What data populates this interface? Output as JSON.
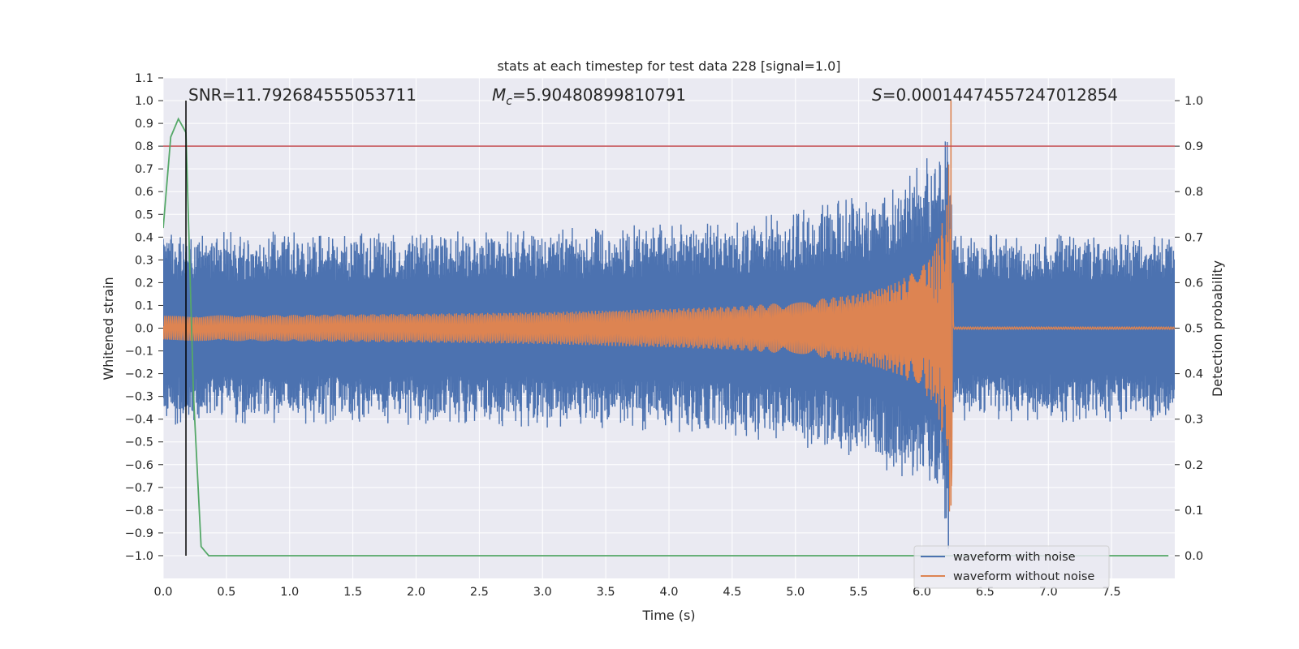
{
  "chart_data": {
    "type": "line",
    "title": "stats at each timestep for test data 228 [signal=1.0]",
    "xlabel": "Time (s)",
    "ylabel": "Whitened strain",
    "ylabel_right": "Detection probability",
    "xlim": [
      0.0,
      8.0
    ],
    "ylim": [
      -1.1,
      1.1
    ],
    "ylim_right": [
      -0.05,
      1.05
    ],
    "x_ticks": [
      "0.0",
      "0.5",
      "1.0",
      "1.5",
      "2.0",
      "2.5",
      "3.0",
      "3.5",
      "4.0",
      "4.5",
      "5.0",
      "5.5",
      "6.0",
      "6.5",
      "7.0",
      "7.5"
    ],
    "y_ticks": [
      "1.1",
      "1.0",
      "0.9",
      "0.8",
      "0.7",
      "0.6",
      "0.5",
      "0.4",
      "0.3",
      "0.2",
      "0.1",
      "0.0",
      "−0.1",
      "−0.2",
      "−0.3",
      "−0.4",
      "−0.5",
      "−0.6",
      "−0.7",
      "−0.8",
      "−0.9",
      "−1.0"
    ],
    "y_right_ticks": [
      "1.0",
      "0.9",
      "0.8",
      "0.7",
      "0.6",
      "0.5",
      "0.4",
      "0.3",
      "0.2",
      "0.1",
      "0.0"
    ],
    "grid": true,
    "legend_position": "lower-right",
    "annotations": {
      "snr": "SNR=11.792684555053711",
      "mc_symbol": "M",
      "mc_sub": "c",
      "mc_value": "=5.90480899810791",
      "s_symbol": "S",
      "s_value": "=0.00014474557247012854"
    },
    "merger_time": 6.23,
    "series": [
      {
        "name": "waveform with noise",
        "color": "#4c72b0",
        "description_points": "noisy envelope approx ±0.38 baseline, growing to ~±0.8 near merger at 6.23s",
        "envelope_x": [
          0.0,
          1.0,
          2.0,
          3.0,
          4.0,
          4.5,
          5.0,
          5.5,
          5.8,
          6.0,
          6.1,
          6.2,
          6.23,
          6.25,
          7.0,
          8.0
        ],
        "envelope_y": [
          0.38,
          0.38,
          0.38,
          0.39,
          0.41,
          0.43,
          0.46,
          0.52,
          0.58,
          0.65,
          0.72,
          0.8,
          0.6,
          0.37,
          0.37,
          0.37
        ]
      },
      {
        "name": "waveform without noise",
        "color": "#dd8452",
        "envelope_x": [
          0.0,
          1.0,
          2.0,
          3.0,
          4.0,
          4.5,
          5.0,
          5.5,
          5.8,
          6.0,
          6.1,
          6.2,
          6.23,
          6.25,
          8.0
        ],
        "envelope_y": [
          0.055,
          0.058,
          0.063,
          0.07,
          0.085,
          0.095,
          0.115,
          0.15,
          0.2,
          0.27,
          0.34,
          0.55,
          1.0,
          0.005,
          0.005
        ]
      },
      {
        "name": "detection probability",
        "color": "#55a868",
        "x": [
          0.0,
          0.06,
          0.12,
          0.18,
          0.24,
          0.3,
          0.36,
          0.4,
          8.0
        ],
        "y": [
          0.72,
          0.92,
          0.96,
          0.93,
          0.35,
          0.02,
          0.0,
          0.0,
          0.0
        ]
      }
    ],
    "threshold_line": {
      "y_right": 0.9,
      "color": "#c44e52"
    },
    "vertical_line": {
      "x": 0.18,
      "color": "#000000"
    }
  }
}
